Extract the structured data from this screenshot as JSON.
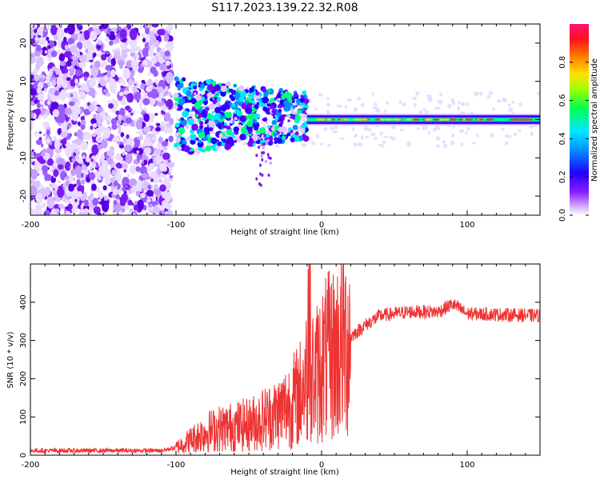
{
  "title": "S117.2023.139.22.32.R08",
  "chart_data": [
    {
      "type": "heatmap",
      "xlabel": "Height of straight line (km)",
      "ylabel": "Frequency (Hz)",
      "xlim": [
        -200,
        150
      ],
      "ylim": [
        -25,
        25
      ],
      "xticks": [
        -200,
        -100,
        0,
        100
      ],
      "yticks": [
        -20,
        -10,
        0,
        10,
        20
      ],
      "colorbar": {
        "label": "Normalized spectral amplitude",
        "range": [
          0,
          1
        ],
        "ticks": [
          "0.0",
          "0.2",
          "0.4",
          "0.6",
          "0.8"
        ],
        "colormap": [
          "#e0c8ff",
          "#7a00ff",
          "#2000ff",
          "#00d0ff",
          "#00ff60",
          "#c0ff00",
          "#ffd000",
          "#ff2020",
          "#ff1060"
        ]
      },
      "regions": [
        {
          "x_range": [
            -200,
            -103
          ],
          "freq_range": [
            -25,
            25
          ],
          "amplitude": "0.0-0.2",
          "description": "noise"
        },
        {
          "x_range": [
            -100,
            -10
          ],
          "freq_range": [
            -10,
            8
          ],
          "amplitude": "0.1-0.5"
        },
        {
          "x_range": [
            -10,
            150
          ],
          "freq_range": [
            -1.5,
            1.5
          ],
          "amplitude": "0.2-0.9"
        }
      ]
    },
    {
      "type": "line",
      "xlabel": "Height of straight line (km)",
      "ylabel": "SNR (10 * v/v)",
      "xlim": [
        -200,
        150
      ],
      "ylim": [
        0,
        500
      ],
      "xticks": [
        -200,
        -100,
        0,
        100
      ],
      "yticks": [
        0,
        100,
        200,
        300,
        400
      ],
      "series": [
        {
          "color": "#ee3333",
          "x": [
            -200,
            -150,
            -110,
            -100,
            -90,
            -80,
            -70,
            -60,
            -50,
            -40,
            -30,
            -20,
            -15,
            -8,
            -5,
            0,
            10,
            20,
            30,
            40,
            60,
            80,
            90,
            100,
            120,
            150
          ],
          "y": [
            12,
            12,
            12,
            20,
            40,
            60,
            70,
            75,
            80,
            95,
            110,
            140,
            160,
            230,
            200,
            240,
            270,
            310,
            340,
            365,
            375,
            375,
            395,
            370,
            368,
            365
          ]
        }
      ]
    }
  ]
}
